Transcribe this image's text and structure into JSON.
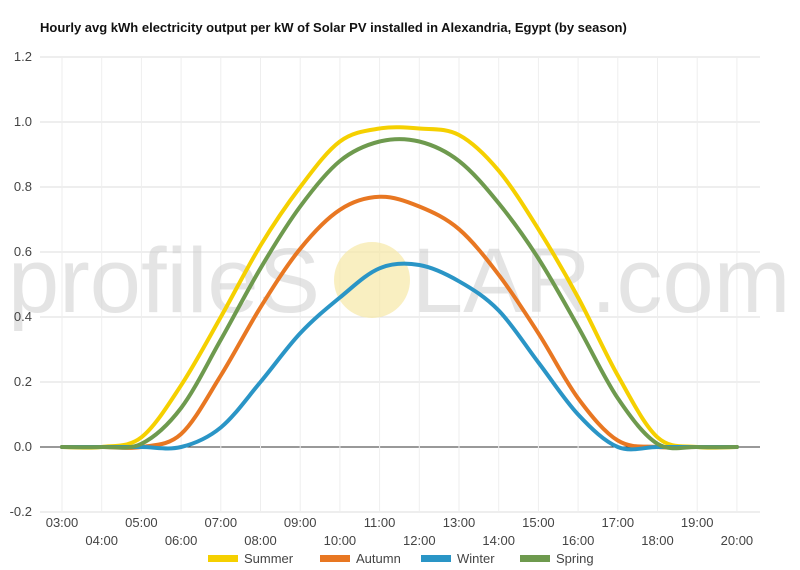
{
  "chart_data": {
    "type": "line",
    "title": "Hourly avg kWh electricity output per kW of Solar PV installed in Alexandria, Egypt (by season)",
    "x": [
      "03:00",
      "04:00",
      "05:00",
      "06:00",
      "07:00",
      "08:00",
      "09:00",
      "10:00",
      "11:00",
      "12:00",
      "13:00",
      "14:00",
      "15:00",
      "16:00",
      "17:00",
      "18:00",
      "19:00",
      "20:00"
    ],
    "xticks_upper": [
      "03:00",
      "05:00",
      "07:00",
      "09:00",
      "11:00",
      "13:00",
      "15:00",
      "17:00",
      "19:00"
    ],
    "xticks_lower": [
      "04:00",
      "06:00",
      "08:00",
      "10:00",
      "12:00",
      "14:00",
      "16:00",
      "18:00",
      "20:00"
    ],
    "ylim": [
      -0.2,
      1.2
    ],
    "yticks": [
      -0.2,
      0.0,
      0.2,
      0.4,
      0.6,
      0.8,
      1.0,
      1.2
    ],
    "grid": true,
    "legend_position": "bottom",
    "series": [
      {
        "name": "Summer",
        "color": "#f5d000",
        "values": [
          0.0,
          0.0,
          0.03,
          0.19,
          0.4,
          0.62,
          0.8,
          0.94,
          0.98,
          0.98,
          0.96,
          0.85,
          0.67,
          0.46,
          0.22,
          0.03,
          0.0,
          0.0
        ]
      },
      {
        "name": "Autumn",
        "color": "#e87722",
        "values": [
          0.0,
          0.0,
          0.0,
          0.04,
          0.22,
          0.43,
          0.61,
          0.73,
          0.77,
          0.74,
          0.67,
          0.53,
          0.35,
          0.15,
          0.02,
          0.0,
          0.0,
          0.0
        ]
      },
      {
        "name": "Winter",
        "color": "#2a95c6",
        "values": [
          0.0,
          0.0,
          0.0,
          0.0,
          0.06,
          0.2,
          0.35,
          0.46,
          0.55,
          0.56,
          0.51,
          0.42,
          0.26,
          0.1,
          0.0,
          0.0,
          0.0,
          0.0
        ]
      },
      {
        "name": "Spring",
        "color": "#6e9a4e",
        "values": [
          0.0,
          0.0,
          0.01,
          0.12,
          0.33,
          0.55,
          0.74,
          0.88,
          0.94,
          0.94,
          0.88,
          0.75,
          0.58,
          0.37,
          0.15,
          0.01,
          0.0,
          0.0
        ]
      }
    ]
  },
  "watermark": {
    "text_left": "profileS",
    "text_right": "LAR.com",
    "sun_color": "#f7e8a6"
  }
}
